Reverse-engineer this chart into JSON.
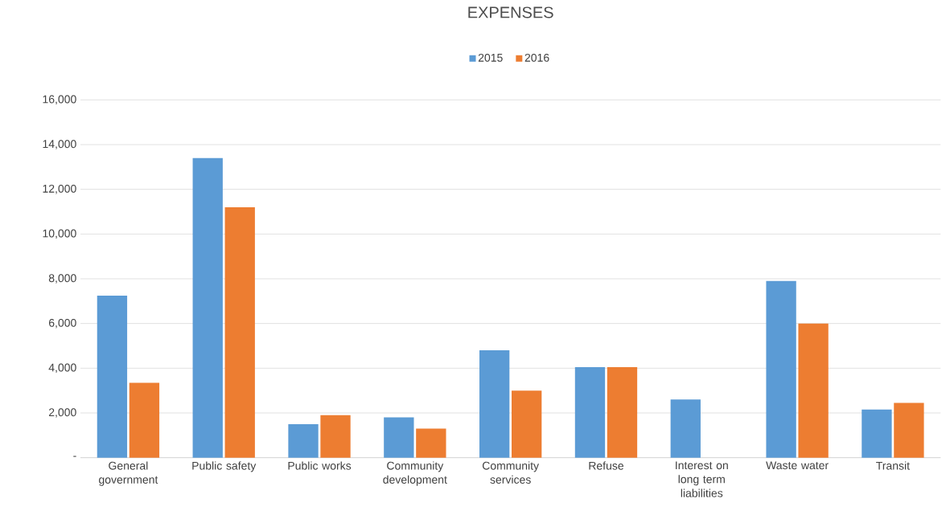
{
  "chart_data": {
    "type": "bar",
    "title": "EXPENSES",
    "categories": [
      "General government",
      "Public safety",
      "Public works",
      "Community development",
      "Community services",
      "Refuse",
      "Interest on long term liabilities",
      "Waste water",
      "Transit"
    ],
    "series": [
      {
        "name": "2015",
        "color": "#5b9bd5",
        "values": [
          7250,
          13400,
          1500,
          1800,
          4800,
          4050,
          2600,
          7900,
          2150
        ]
      },
      {
        "name": "2016",
        "color": "#ed7d31",
        "values": [
          3350,
          11200,
          1900,
          1300,
          3000,
          4050,
          null,
          6000,
          2450
        ]
      }
    ],
    "ylim": [
      0,
      16000
    ],
    "yticks": [
      {
        "value": 0,
        "label": "-"
      },
      {
        "value": 2000,
        "label": "2,000"
      },
      {
        "value": 4000,
        "label": "4,000"
      },
      {
        "value": 6000,
        "label": "6,000"
      },
      {
        "value": 8000,
        "label": "8,000"
      },
      {
        "value": 10000,
        "label": "10,000"
      },
      {
        "value": 12000,
        "label": "12,000"
      },
      {
        "value": 14000,
        "label": "14,000"
      },
      {
        "value": 16000,
        "label": "16,000"
      }
    ],
    "grid": "y",
    "legend": "top"
  }
}
